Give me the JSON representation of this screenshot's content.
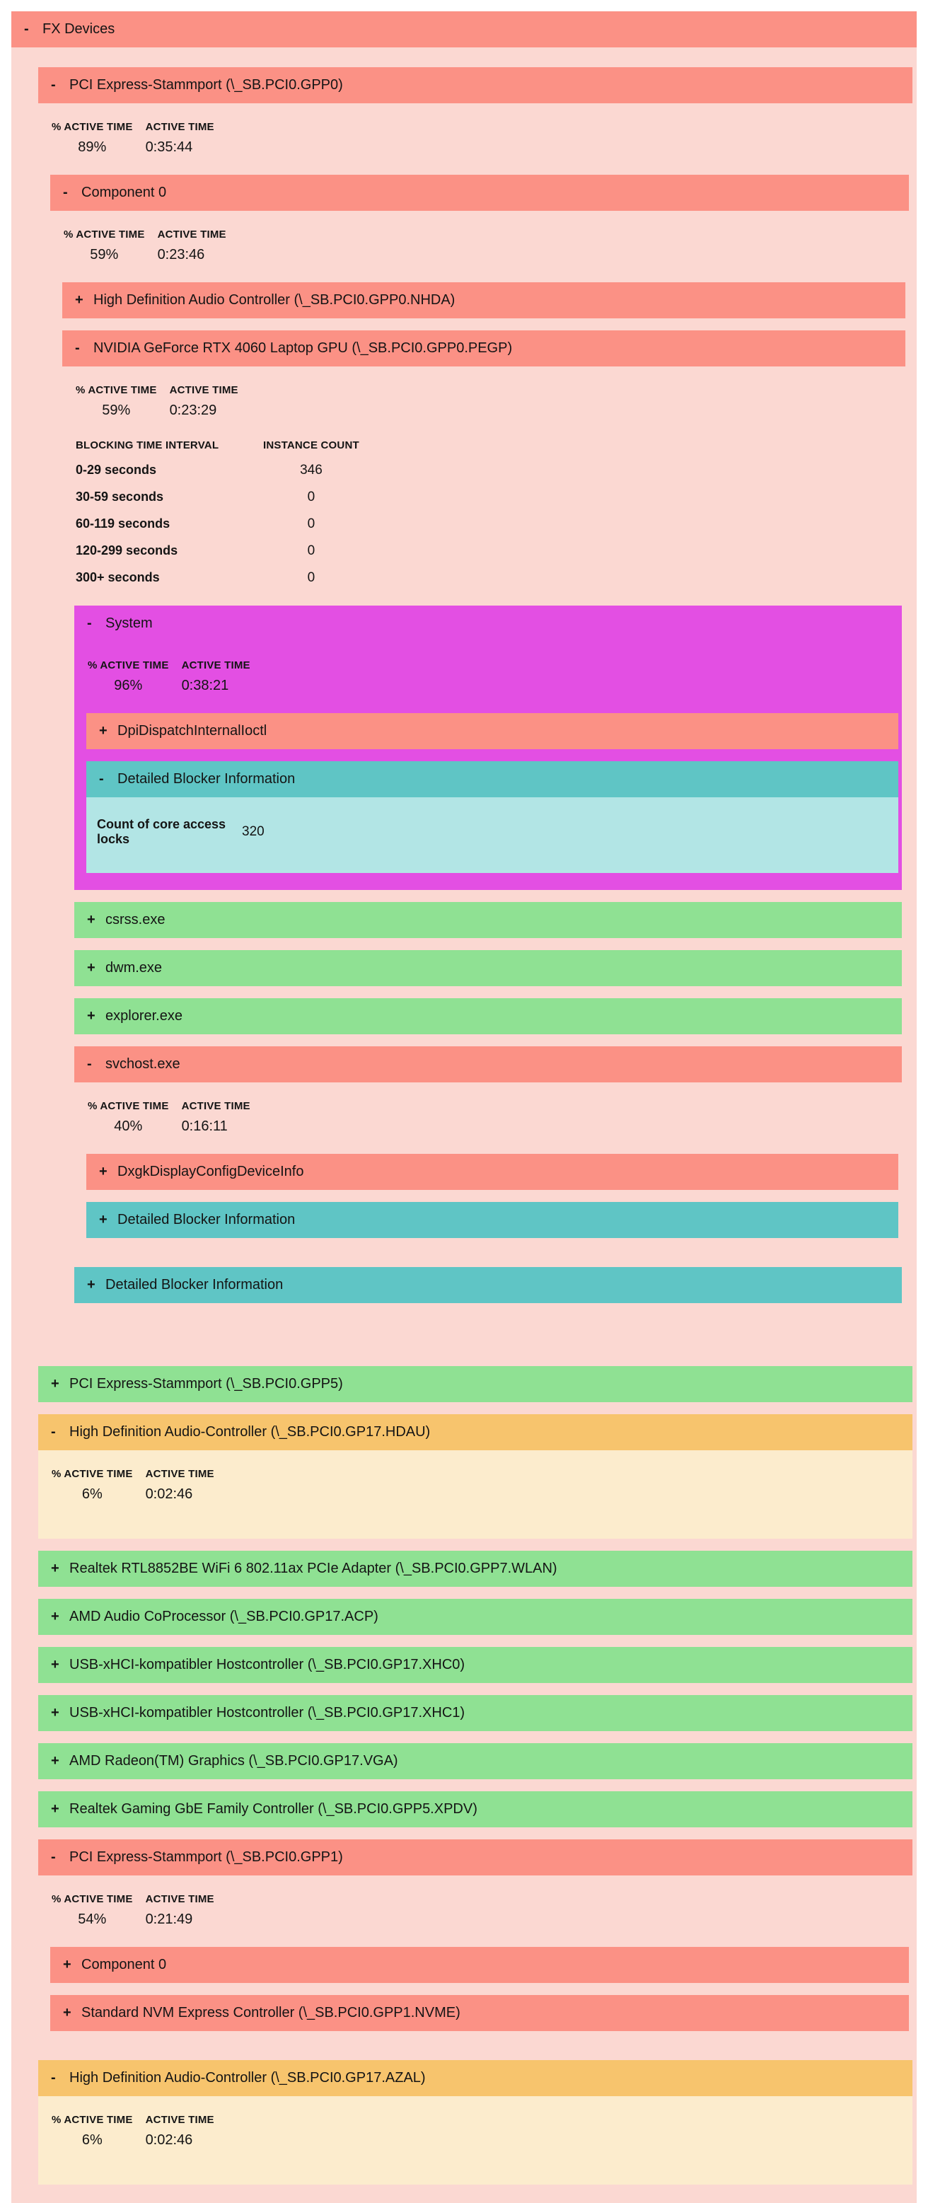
{
  "labels": {
    "collapse": "-",
    "expand": "+",
    "pct_active_time": "% ACTIVE TIME",
    "active_time": "ACTIVE TIME",
    "blocking_time_interval": "BLOCKING TIME INTERVAL",
    "instance_count": "INSTANCE COUNT"
  },
  "colors": {
    "salmon_header": "#fb9185",
    "pink_body": "#fbd8d2",
    "green_header": "#8fe193",
    "magenta_header": "#e34fe3",
    "teal_header": "#5fc5c5",
    "teal_light_body": "#b2e5e5",
    "orange_header": "#f7c46d",
    "cream_body": "#fceccd",
    "page_background": "#ffffff"
  },
  "fx": {
    "title": "FX Devices",
    "gpp0": {
      "title": "PCI Express-Stammport (\\_SB.PCI0.GPP0)",
      "pct": "89%",
      "time": "0:35:44",
      "component0": {
        "title": "Component 0",
        "pct": "59%",
        "time": "0:23:46",
        "nhda": {
          "title": "High Definition Audio Controller (\\_SB.PCI0.GPP0.NHDA)"
        },
        "pegp": {
          "title": "NVIDIA GeForce RTX 4060 Laptop GPU (\\_SB.PCI0.GPP0.PEGP)",
          "pct": "59%",
          "time": "0:23:29",
          "blocking": {
            "rows": [
              {
                "label": "0-29 seconds",
                "count": "346"
              },
              {
                "label": "30-59 seconds",
                "count": "0"
              },
              {
                "label": "60-119 seconds",
                "count": "0"
              },
              {
                "label": "120-299 seconds",
                "count": "0"
              },
              {
                "label": "300+ seconds",
                "count": "0"
              }
            ]
          },
          "system": {
            "title": "System",
            "pct": "96%",
            "time": "0:38:21",
            "dpi": {
              "title": "DpiDispatchInternalIoctl"
            },
            "blocker": {
              "title": "Detailed Blocker Information",
              "core_locks_label": "Count of core access locks",
              "core_locks_value": "320"
            }
          },
          "csrss": {
            "title": "csrss.exe"
          },
          "dwm": {
            "title": "dwm.exe"
          },
          "explorer": {
            "title": "explorer.exe"
          },
          "svchost": {
            "title": "svchost.exe",
            "pct": "40%",
            "time": "0:16:11",
            "dxgk": {
              "title": "DxgkDisplayConfigDeviceInfo"
            },
            "blocker": {
              "title": "Detailed Blocker Information"
            }
          },
          "blocker": {
            "title": "Detailed Blocker Information"
          }
        }
      }
    },
    "gpp5": {
      "title": "PCI Express-Stammport (\\_SB.PCI0.GPP5)"
    },
    "hdau": {
      "title": "High Definition Audio-Controller (\\_SB.PCI0.GP17.HDAU)",
      "pct": "6%",
      "time": "0:02:46"
    },
    "wlan": {
      "title": "Realtek RTL8852BE WiFi 6 802.11ax PCIe Adapter (\\_SB.PCI0.GPP7.WLAN)"
    },
    "acp": {
      "title": "AMD Audio CoProcessor (\\_SB.PCI0.GP17.ACP)"
    },
    "xhc0": {
      "title": "USB-xHCI-kompatibler Hostcontroller (\\_SB.PCI0.GP17.XHC0)"
    },
    "xhc1": {
      "title": "USB-xHCI-kompatibler Hostcontroller (\\_SB.PCI0.GP17.XHC1)"
    },
    "vga": {
      "title": "AMD Radeon(TM) Graphics (\\_SB.PCI0.GP17.VGA)"
    },
    "xpdv": {
      "title": "Realtek Gaming GbE Family Controller (\\_SB.PCI0.GPP5.XPDV)"
    },
    "gpp1": {
      "title": "PCI Express-Stammport (\\_SB.PCI0.GPP1)",
      "pct": "54%",
      "time": "0:21:49",
      "component0": {
        "title": "Component 0"
      },
      "nvme": {
        "title": "Standard NVM Express Controller (\\_SB.PCI0.GPP1.NVME)"
      }
    },
    "azal": {
      "title": "High Definition Audio-Controller (\\_SB.PCI0.GP17.AZAL)",
      "pct": "6%",
      "time": "0:02:46"
    }
  }
}
